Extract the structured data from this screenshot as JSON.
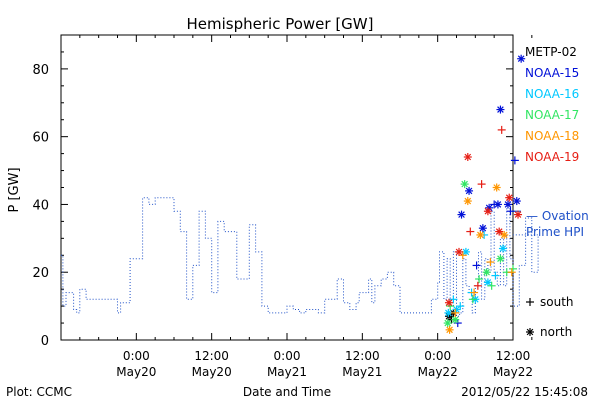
{
  "chart_data": {
    "type": "scatter",
    "title": "Hemispheric Power [GW]",
    "ylabel": "P [GW]",
    "xlabel": "Date and Time",
    "ylim": [
      0,
      90
    ],
    "yticks": [
      0,
      20,
      40,
      60,
      80
    ],
    "xlim_hours": [
      -12,
      60
    ],
    "xticks": [
      {
        "hour": 0,
        "line1": "0:00",
        "line2": "May20"
      },
      {
        "hour": 12,
        "line1": "12:00",
        "line2": "May20"
      },
      {
        "hour": 24,
        "line1": "0:00",
        "line2": "May21"
      },
      {
        "hour": 36,
        "line1": "12:00",
        "line2": "May21"
      },
      {
        "hour": 48,
        "line1": "0:00",
        "line2": "May22"
      },
      {
        "hour": 60,
        "line1": "12:00",
        "line2": "May22"
      }
    ],
    "ovation": {
      "label_line1": "— Ovation",
      "label_line2": "Prime HPI",
      "color": "#1e50c8",
      "current_value": 38,
      "steps": [
        [
          -12,
          25
        ],
        [
          -11.7,
          10
        ],
        [
          -11.2,
          14
        ],
        [
          -10,
          9
        ],
        [
          -9.5,
          8
        ],
        [
          -9,
          15
        ],
        [
          -8,
          12
        ],
        [
          -6,
          12
        ],
        [
          -5,
          12
        ],
        [
          -3.5,
          12
        ],
        [
          -3,
          8
        ],
        [
          -2.5,
          11
        ],
        [
          -1,
          24
        ],
        [
          0,
          24
        ],
        [
          1,
          42
        ],
        [
          2,
          40
        ],
        [
          3,
          42
        ],
        [
          5,
          42
        ],
        [
          6,
          38
        ],
        [
          7,
          32
        ],
        [
          8,
          12
        ],
        [
          9,
          22
        ],
        [
          10,
          38
        ],
        [
          11,
          30
        ],
        [
          12,
          14
        ],
        [
          13,
          35
        ],
        [
          14,
          32
        ],
        [
          15,
          32
        ],
        [
          16,
          18
        ],
        [
          17,
          18
        ],
        [
          18,
          34
        ],
        [
          19,
          26
        ],
        [
          20,
          10
        ],
        [
          21,
          8
        ],
        [
          22,
          8
        ],
        [
          23,
          8
        ],
        [
          24,
          10
        ],
        [
          25,
          9
        ],
        [
          26,
          8
        ],
        [
          27,
          9
        ],
        [
          28,
          9
        ],
        [
          29,
          8
        ],
        [
          30,
          12
        ],
        [
          31,
          12
        ],
        [
          32,
          18
        ],
        [
          33,
          11
        ],
        [
          34,
          9
        ],
        [
          35,
          11
        ],
        [
          35.5,
          14
        ],
        [
          36,
          14
        ],
        [
          37,
          18
        ],
        [
          37.5,
          11
        ],
        [
          38,
          16
        ],
        [
          39,
          18
        ],
        [
          40,
          20
        ],
        [
          41,
          16
        ],
        [
          42,
          8
        ],
        [
          43,
          8
        ],
        [
          44,
          8
        ],
        [
          45,
          8
        ],
        [
          46,
          8
        ],
        [
          47,
          12
        ],
        [
          48,
          17
        ],
        [
          48.3,
          26
        ],
        [
          49,
          12
        ],
        [
          49.5,
          24
        ],
        [
          50,
          10
        ],
        [
          50.5,
          26
        ],
        [
          51,
          7
        ],
        [
          51.5,
          8
        ],
        [
          52,
          24
        ],
        [
          52.5,
          16
        ],
        [
          53,
          14
        ],
        [
          53.5,
          8
        ],
        [
          54,
          16
        ],
        [
          54.5,
          26
        ],
        [
          55,
          12
        ],
        [
          55.5,
          24
        ],
        [
          56,
          20
        ],
        [
          56.5,
          38
        ],
        [
          57,
          20
        ],
        [
          57.5,
          16
        ],
        [
          58,
          30
        ],
        [
          58.5,
          16
        ],
        [
          59,
          40
        ],
        [
          59.5,
          24
        ],
        [
          60,
          10
        ],
        [
          61,
          22
        ],
        [
          62,
          36
        ],
        [
          63,
          20
        ],
        [
          64,
          31
        ]
      ]
    },
    "symbol_legend": [
      {
        "symbol": "+",
        "label": "south"
      },
      {
        "symbol": "*",
        "label": "north"
      }
    ],
    "series": [
      {
        "name": "METP-02",
        "color": "#000000",
        "points": [
          {
            "x": 49.8,
            "y": 7,
            "m": "*"
          },
          {
            "x": 50.2,
            "y": 6,
            "m": "+"
          },
          {
            "x": 50.5,
            "y": 8,
            "m": "*"
          }
        ]
      },
      {
        "name": "NOAA-15",
        "color": "#0010d8",
        "points": [
          {
            "x": 51.2,
            "y": 5,
            "m": "+"
          },
          {
            "x": 51.8,
            "y": 37,
            "m": "*"
          },
          {
            "x": 53.0,
            "y": 44,
            "m": "*"
          },
          {
            "x": 54.2,
            "y": 22,
            "m": "+"
          },
          {
            "x": 55.2,
            "y": 33,
            "m": "*"
          },
          {
            "x": 56.2,
            "y": 39,
            "m": "*"
          },
          {
            "x": 57.0,
            "y": 40,
            "m": "+"
          },
          {
            "x": 57.6,
            "y": 40,
            "m": "*"
          },
          {
            "x": 58.0,
            "y": 68,
            "m": "*"
          },
          {
            "x": 59.2,
            "y": 40,
            "m": "*"
          },
          {
            "x": 59.6,
            "y": 38,
            "m": "+"
          },
          {
            "x": 60.3,
            "y": 53,
            "m": "+"
          },
          {
            "x": 60.6,
            "y": 41,
            "m": "*"
          },
          {
            "x": 61.3,
            "y": 83,
            "m": "*"
          }
        ]
      },
      {
        "name": "NOAA-16",
        "color": "#00c8ff",
        "points": [
          {
            "x": 49.7,
            "y": 8,
            "m": "*"
          },
          {
            "x": 50.5,
            "y": 12,
            "m": "+"
          },
          {
            "x": 51.0,
            "y": 9,
            "m": "*"
          },
          {
            "x": 51.6,
            "y": 10,
            "m": "+"
          },
          {
            "x": 52.5,
            "y": 26,
            "m": "*"
          },
          {
            "x": 53.4,
            "y": 14,
            "m": "+"
          },
          {
            "x": 54.0,
            "y": 12,
            "m": "*"
          },
          {
            "x": 55.4,
            "y": 31,
            "m": "+"
          },
          {
            "x": 56.0,
            "y": 17,
            "m": "*"
          },
          {
            "x": 57.2,
            "y": 19,
            "m": "+"
          },
          {
            "x": 58.4,
            "y": 27,
            "m": "*"
          }
        ]
      },
      {
        "name": "NOAA-17",
        "color": "#32e664",
        "points": [
          {
            "x": 49.6,
            "y": 5,
            "m": "*"
          },
          {
            "x": 50.0,
            "y": 10,
            "m": "+"
          },
          {
            "x": 50.8,
            "y": 6,
            "m": "*"
          },
          {
            "x": 52.3,
            "y": 46,
            "m": "*"
          },
          {
            "x": 53.6,
            "y": 12,
            "m": "+"
          },
          {
            "x": 54.6,
            "y": 18,
            "m": "+"
          },
          {
            "x": 55.8,
            "y": 20,
            "m": "*"
          },
          {
            "x": 56.6,
            "y": 16,
            "m": "+"
          },
          {
            "x": 58.0,
            "y": 24,
            "m": "*"
          },
          {
            "x": 59.0,
            "y": 20,
            "m": "+"
          },
          {
            "x": 60.0,
            "y": 21,
            "m": "+"
          }
        ]
      },
      {
        "name": "NOAA-18",
        "color": "#ff9600",
        "points": [
          {
            "x": 49.9,
            "y": 3,
            "m": "*"
          },
          {
            "x": 50.8,
            "y": 8,
            "m": "+"
          },
          {
            "x": 52.0,
            "y": 25,
            "m": "+"
          },
          {
            "x": 52.8,
            "y": 41,
            "m": "*"
          },
          {
            "x": 53.8,
            "y": 14,
            "m": "+"
          },
          {
            "x": 54.8,
            "y": 31,
            "m": "*"
          },
          {
            "x": 56.4,
            "y": 23,
            "m": "+"
          },
          {
            "x": 57.4,
            "y": 45,
            "m": "*"
          },
          {
            "x": 58.6,
            "y": 31,
            "m": "*"
          },
          {
            "x": 59.8,
            "y": 20,
            "m": "+"
          }
        ]
      },
      {
        "name": "NOAA-19",
        "color": "#e61e14",
        "points": [
          {
            "x": 49.8,
            "y": 11,
            "m": "*"
          },
          {
            "x": 51.4,
            "y": 26,
            "m": "*"
          },
          {
            "x": 52.8,
            "y": 54,
            "m": "*"
          },
          {
            "x": 53.2,
            "y": 32,
            "m": "+"
          },
          {
            "x": 54.4,
            "y": 16,
            "m": "+"
          },
          {
            "x": 55.0,
            "y": 46,
            "m": "+"
          },
          {
            "x": 56.0,
            "y": 38,
            "m": "*"
          },
          {
            "x": 57.8,
            "y": 32,
            "m": "*"
          },
          {
            "x": 58.2,
            "y": 62,
            "m": "+"
          },
          {
            "x": 59.4,
            "y": 42,
            "m": "*"
          },
          {
            "x": 60.8,
            "y": 37,
            "m": "*"
          }
        ]
      }
    ]
  },
  "footer": {
    "plot_credit": "Plot: CCMC",
    "timestamp": "2012/05/22 15:45:08"
  }
}
